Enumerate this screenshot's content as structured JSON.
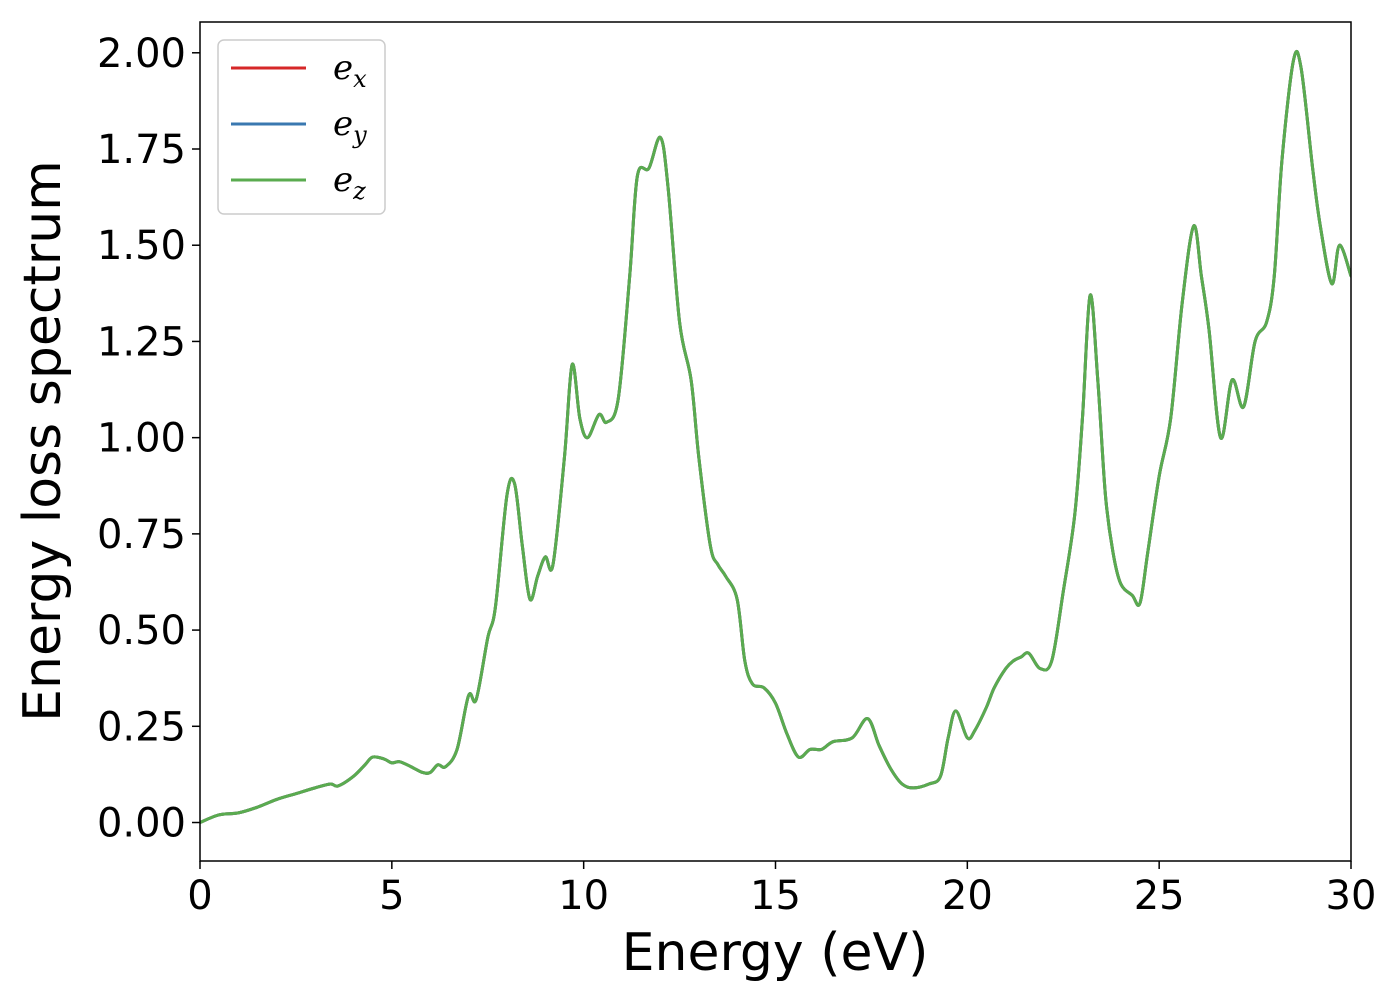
{
  "chart_data": {
    "type": "line",
    "title": "",
    "xlabel": "Energy (eV)",
    "ylabel": "Energy loss spectrum",
    "xlim": [
      0,
      30
    ],
    "ylim": [
      -0.1,
      2.08
    ],
    "xticks": [
      0,
      5,
      10,
      15,
      20,
      25,
      30
    ],
    "yticks": [
      0.0,
      0.25,
      0.5,
      0.75,
      1.0,
      1.25,
      1.5,
      1.75,
      2.0
    ],
    "xtick_labels": [
      "0",
      "5",
      "10",
      "15",
      "20",
      "25",
      "30"
    ],
    "ytick_labels": [
      "0.00",
      "0.25",
      "0.50",
      "0.75",
      "1.00",
      "1.25",
      "1.50",
      "1.75",
      "2.00"
    ],
    "grid": false,
    "legend": {
      "placement": "top-left",
      "entries": [
        {
          "base": "e",
          "sub": "x"
        },
        {
          "base": "e",
          "sub": "y"
        },
        {
          "base": "e",
          "sub": "z"
        }
      ]
    },
    "x": [
      0,
      0.5,
      1.0,
      1.5,
      2.0,
      2.5,
      3.0,
      3.4,
      3.6,
      4.0,
      4.3,
      4.5,
      4.8,
      5.0,
      5.2,
      5.5,
      5.8,
      6.0,
      6.2,
      6.4,
      6.7,
      7.0,
      7.2,
      7.5,
      7.7,
      8.0,
      8.2,
      8.4,
      8.6,
      8.8,
      9.0,
      9.2,
      9.5,
      9.7,
      9.9,
      10.1,
      10.4,
      10.6,
      10.9,
      11.2,
      11.4,
      11.7,
      12.0,
      12.2,
      12.5,
      12.8,
      13.0,
      13.3,
      13.5,
      13.7,
      14.0,
      14.2,
      14.4,
      14.7,
      15.0,
      15.3,
      15.6,
      15.9,
      16.2,
      16.5,
      17.0,
      17.4,
      17.7,
      18.0,
      18.3,
      18.6,
      19.0,
      19.3,
      19.5,
      19.7,
      20.0,
      20.2,
      20.5,
      20.7,
      21.0,
      21.2,
      21.4,
      21.6,
      21.9,
      22.2,
      22.5,
      22.8,
      23.0,
      23.2,
      23.4,
      23.6,
      23.8,
      24.0,
      24.3,
      24.5,
      24.7,
      25.0,
      25.3,
      25.6,
      25.9,
      26.1,
      26.3,
      26.6,
      26.9,
      27.2,
      27.5,
      27.8,
      28.0,
      28.2,
      28.5,
      28.7,
      29.0,
      29.2,
      29.5,
      29.7,
      30.0
    ],
    "series": [
      {
        "name": "e_x",
        "color": "#d62728",
        "values": [
          0.0,
          0.02,
          0.025,
          0.04,
          0.06,
          0.075,
          0.09,
          0.1,
          0.095,
          0.12,
          0.15,
          0.17,
          0.165,
          0.155,
          0.158,
          0.145,
          0.13,
          0.13,
          0.15,
          0.145,
          0.19,
          0.33,
          0.32,
          0.48,
          0.56,
          0.85,
          0.88,
          0.72,
          0.58,
          0.64,
          0.69,
          0.67,
          0.95,
          1.19,
          1.05,
          1.0,
          1.06,
          1.04,
          1.1,
          1.42,
          1.68,
          1.7,
          1.78,
          1.65,
          1.3,
          1.15,
          0.95,
          0.72,
          0.67,
          0.64,
          0.58,
          0.42,
          0.36,
          0.35,
          0.31,
          0.23,
          0.17,
          0.19,
          0.19,
          0.21,
          0.22,
          0.27,
          0.2,
          0.14,
          0.1,
          0.09,
          0.1,
          0.12,
          0.22,
          0.29,
          0.22,
          0.24,
          0.3,
          0.35,
          0.4,
          0.42,
          0.43,
          0.44,
          0.4,
          0.42,
          0.6,
          0.8,
          1.05,
          1.37,
          1.15,
          0.85,
          0.7,
          0.62,
          0.59,
          0.57,
          0.7,
          0.9,
          1.05,
          1.35,
          1.55,
          1.42,
          1.28,
          1.0,
          1.15,
          1.08,
          1.25,
          1.3,
          1.42,
          1.72,
          1.98,
          1.96,
          1.7,
          1.55,
          1.4,
          1.5,
          1.42
        ]
      },
      {
        "name": "e_y",
        "color": "#3a78b0",
        "values": [
          0.0,
          0.02,
          0.025,
          0.04,
          0.06,
          0.075,
          0.09,
          0.1,
          0.095,
          0.12,
          0.15,
          0.17,
          0.165,
          0.155,
          0.158,
          0.145,
          0.13,
          0.13,
          0.15,
          0.145,
          0.19,
          0.33,
          0.32,
          0.48,
          0.56,
          0.85,
          0.88,
          0.72,
          0.58,
          0.64,
          0.69,
          0.67,
          0.95,
          1.19,
          1.05,
          1.0,
          1.06,
          1.04,
          1.1,
          1.42,
          1.68,
          1.7,
          1.78,
          1.65,
          1.3,
          1.15,
          0.95,
          0.72,
          0.67,
          0.64,
          0.58,
          0.42,
          0.36,
          0.35,
          0.31,
          0.23,
          0.17,
          0.19,
          0.19,
          0.21,
          0.22,
          0.27,
          0.2,
          0.14,
          0.1,
          0.09,
          0.1,
          0.12,
          0.22,
          0.29,
          0.22,
          0.24,
          0.3,
          0.35,
          0.4,
          0.42,
          0.43,
          0.44,
          0.4,
          0.42,
          0.6,
          0.8,
          1.05,
          1.37,
          1.15,
          0.85,
          0.7,
          0.62,
          0.59,
          0.57,
          0.7,
          0.9,
          1.05,
          1.35,
          1.55,
          1.42,
          1.28,
          1.0,
          1.15,
          1.08,
          1.25,
          1.3,
          1.42,
          1.72,
          1.98,
          1.96,
          1.7,
          1.55,
          1.4,
          1.5,
          1.42
        ]
      },
      {
        "name": "e_z",
        "color": "#5aab4f",
        "values": [
          0.0,
          0.02,
          0.025,
          0.04,
          0.06,
          0.075,
          0.09,
          0.1,
          0.095,
          0.12,
          0.15,
          0.17,
          0.165,
          0.155,
          0.158,
          0.145,
          0.13,
          0.13,
          0.15,
          0.145,
          0.19,
          0.33,
          0.32,
          0.48,
          0.56,
          0.85,
          0.88,
          0.72,
          0.58,
          0.64,
          0.69,
          0.67,
          0.95,
          1.19,
          1.05,
          1.0,
          1.06,
          1.04,
          1.1,
          1.42,
          1.68,
          1.7,
          1.78,
          1.65,
          1.3,
          1.15,
          0.95,
          0.72,
          0.67,
          0.64,
          0.58,
          0.42,
          0.36,
          0.35,
          0.31,
          0.23,
          0.17,
          0.19,
          0.19,
          0.21,
          0.22,
          0.27,
          0.2,
          0.14,
          0.1,
          0.09,
          0.1,
          0.12,
          0.22,
          0.29,
          0.22,
          0.24,
          0.3,
          0.35,
          0.4,
          0.42,
          0.43,
          0.44,
          0.4,
          0.42,
          0.6,
          0.8,
          1.05,
          1.37,
          1.15,
          0.85,
          0.7,
          0.62,
          0.59,
          0.57,
          0.7,
          0.9,
          1.05,
          1.35,
          1.55,
          1.42,
          1.28,
          1.0,
          1.15,
          1.08,
          1.25,
          1.3,
          1.42,
          1.72,
          1.98,
          1.96,
          1.7,
          1.55,
          1.4,
          1.5,
          1.42
        ]
      }
    ]
  }
}
